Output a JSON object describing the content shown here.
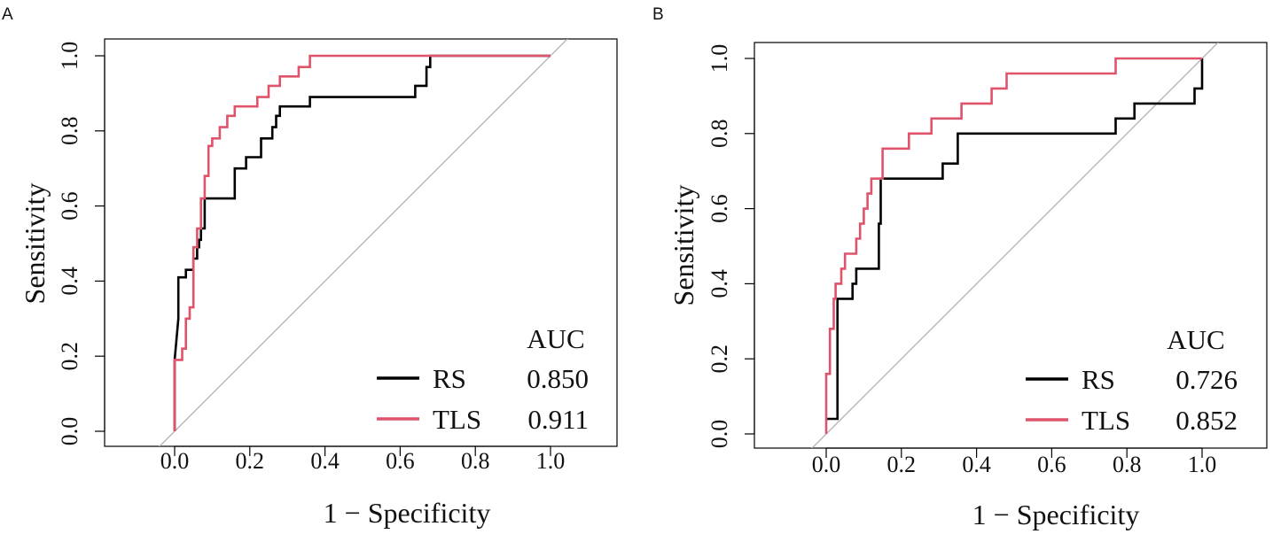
{
  "chart_data": [
    {
      "panel": "A",
      "type": "line",
      "title": "",
      "xlabel": "1 − Specificity",
      "ylabel": "Sensitivity",
      "xlim": [
        -0.18,
        1.18
      ],
      "ylim": [
        -0.03,
        1.04
      ],
      "xticks": [
        0.0,
        0.2,
        0.4,
        0.6,
        0.8,
        1.0
      ],
      "xtick_labels": [
        "0.0",
        "0.2",
        "0.4",
        "0.6",
        "0.8",
        "1.0"
      ],
      "yticks": [
        0.0,
        0.2,
        0.4,
        0.6,
        0.8,
        1.0
      ],
      "ytick_labels": [
        "0.0",
        "0.2",
        "0.4",
        "0.6",
        "0.8",
        "1.0"
      ],
      "diagonal": true,
      "legend_header": "AUC",
      "legend_position": "bottom-right",
      "series": [
        {
          "name": "RS",
          "auc": "0.850",
          "color": "#000000",
          "x": [
            0,
            0,
            0.01,
            0.01,
            0.03,
            0.03,
            0.05,
            0.05,
            0.06,
            0.06,
            0.065,
            0.065,
            0.07,
            0.07,
            0.08,
            0.08,
            0.12,
            0.16,
            0.16,
            0.19,
            0.19,
            0.23,
            0.23,
            0.26,
            0.26,
            0.27,
            0.27,
            0.28,
            0.28,
            0.29,
            0.29,
            0.33,
            0.36,
            0.36,
            0.56,
            0.56,
            0.64,
            0.64,
            0.67,
            0.67,
            0.68,
            0.68,
            1.0
          ],
          "y": [
            0,
            0.19,
            0.3,
            0.41,
            0.41,
            0.43,
            0.43,
            0.46,
            0.46,
            0.49,
            0.49,
            0.51,
            0.51,
            0.54,
            0.54,
            0.62,
            0.62,
            0.62,
            0.7,
            0.7,
            0.73,
            0.73,
            0.78,
            0.78,
            0.81,
            0.81,
            0.84,
            0.84,
            0.865,
            0.865,
            0.865,
            0.865,
            0.865,
            0.89,
            0.89,
            0.89,
            0.89,
            0.92,
            0.92,
            0.97,
            0.97,
            1.0,
            1.0
          ]
        },
        {
          "name": "TLS",
          "auc": "0.911",
          "color": "#df536b",
          "x": [
            0,
            0,
            0.02,
            0.02,
            0.03,
            0.03,
            0.04,
            0.04,
            0.05,
            0.05,
            0.06,
            0.06,
            0.07,
            0.07,
            0.08,
            0.08,
            0.09,
            0.09,
            0.1,
            0.1,
            0.11,
            0.11,
            0.12,
            0.12,
            0.14,
            0.14,
            0.16,
            0.16,
            0.22,
            0.22,
            0.25,
            0.25,
            0.28,
            0.28,
            0.31,
            0.31,
            0.33,
            0.33,
            0.36,
            0.36,
            1.0
          ],
          "y": [
            0,
            0.19,
            0.19,
            0.22,
            0.22,
            0.3,
            0.3,
            0.33,
            0.33,
            0.49,
            0.49,
            0.54,
            0.54,
            0.62,
            0.62,
            0.68,
            0.68,
            0.76,
            0.76,
            0.78,
            0.78,
            0.78,
            0.78,
            0.81,
            0.81,
            0.84,
            0.84,
            0.865,
            0.865,
            0.89,
            0.89,
            0.92,
            0.92,
            0.945,
            0.945,
            0.945,
            0.945,
            0.97,
            0.97,
            1.0,
            1.0
          ]
        }
      ]
    },
    {
      "panel": "B",
      "type": "line",
      "title": "",
      "xlabel": "1 − Specificity",
      "ylabel": "Sensitivity",
      "xlim": [
        -0.18,
        1.18
      ],
      "ylim": [
        -0.03,
        1.04
      ],
      "xticks": [
        0.0,
        0.2,
        0.4,
        0.6,
        0.8,
        1.0
      ],
      "xtick_labels": [
        "0.0",
        "0.2",
        "0.4",
        "0.6",
        "0.8",
        "1.0"
      ],
      "yticks": [
        0.0,
        0.2,
        0.4,
        0.6,
        0.8,
        1.0
      ],
      "ytick_labels": [
        "0.0",
        "0.2",
        "0.4",
        "0.6",
        "0.8",
        "1.0"
      ],
      "diagonal": true,
      "legend_header": "AUC",
      "legend_position": "bottom-right",
      "series": [
        {
          "name": "RS",
          "auc": "0.726",
          "color": "#000000",
          "x": [
            0,
            0.03,
            0.03,
            0.03,
            0.03,
            0.07,
            0.07,
            0.08,
            0.08,
            0.12,
            0.12,
            0.14,
            0.14,
            0.145,
            0.145,
            0.15,
            0.15,
            0.31,
            0.31,
            0.35,
            0.35,
            0.77,
            0.77,
            0.82,
            0.82,
            0.98,
            0.98,
            1.0,
            1.0
          ],
          "y": [
            0.04,
            0.04,
            0.28,
            0.36,
            0.36,
            0.36,
            0.4,
            0.4,
            0.44,
            0.44,
            0.44,
            0.44,
            0.56,
            0.56,
            0.68,
            0.68,
            0.68,
            0.68,
            0.72,
            0.72,
            0.8,
            0.8,
            0.84,
            0.84,
            0.88,
            0.88,
            0.92,
            0.92,
            1.0
          ]
        },
        {
          "name": "TLS",
          "auc": "0.852",
          "color": "#df536b",
          "x": [
            0,
            0,
            0.01,
            0.01,
            0.02,
            0.02,
            0.025,
            0.025,
            0.04,
            0.04,
            0.05,
            0.05,
            0.07,
            0.07,
            0.08,
            0.08,
            0.09,
            0.09,
            0.1,
            0.1,
            0.11,
            0.11,
            0.12,
            0.12,
            0.13,
            0.13,
            0.15,
            0.15,
            0.19,
            0.19,
            0.22,
            0.22,
            0.28,
            0.28,
            0.36,
            0.36,
            0.44,
            0.44,
            0.48,
            0.48,
            0.77,
            0.77,
            1.0
          ],
          "y": [
            0,
            0.16,
            0.16,
            0.28,
            0.28,
            0.36,
            0.36,
            0.4,
            0.4,
            0.44,
            0.44,
            0.48,
            0.48,
            0.48,
            0.48,
            0.52,
            0.52,
            0.56,
            0.56,
            0.6,
            0.6,
            0.64,
            0.64,
            0.68,
            0.68,
            0.68,
            0.68,
            0.76,
            0.76,
            0.76,
            0.76,
            0.8,
            0.8,
            0.84,
            0.84,
            0.88,
            0.88,
            0.92,
            0.92,
            0.96,
            0.96,
            1.0,
            1.0
          ]
        }
      ]
    }
  ],
  "colors": {
    "axis": "#000000",
    "diagonal": "#b0b0b0"
  }
}
